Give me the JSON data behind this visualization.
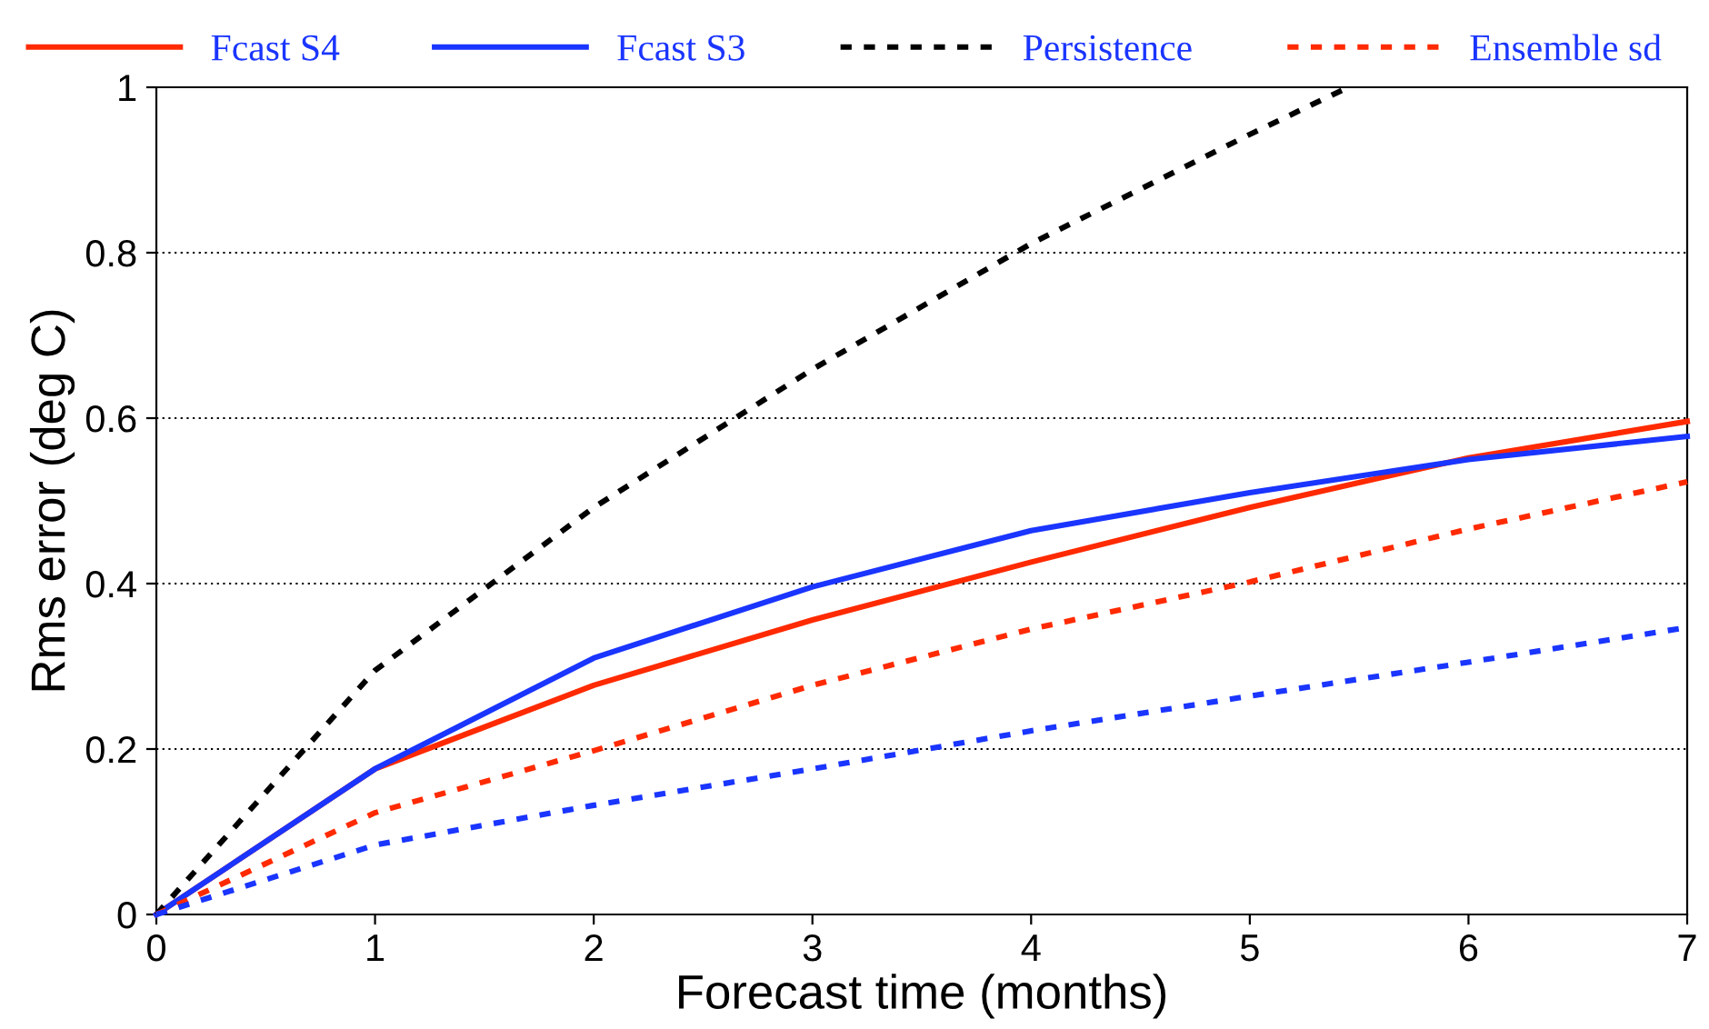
{
  "chart_data": {
    "type": "line",
    "xlabel": "Forecast time (months)",
    "ylabel": "Rms error (deg C)",
    "x": [
      0,
      1,
      2,
      3,
      4,
      5,
      6,
      7
    ],
    "series": [
      {
        "name": "Fcast S4",
        "color": "#ff2a00",
        "line_style": "solid",
        "values": [
          0,
          0.176,
          0.277,
          0.356,
          0.426,
          0.492,
          0.552,
          0.596
        ]
      },
      {
        "name": "Fcast S3",
        "color": "#1a35ff",
        "line_style": "solid",
        "values": [
          0,
          0.176,
          0.31,
          0.396,
          0.464,
          0.51,
          0.55,
          0.578
        ]
      },
      {
        "name": "Persistence",
        "color": "#000000",
        "line_style": "dotted",
        "x": [
          0,
          1,
          2,
          3,
          4,
          5,
          5.45
        ],
        "values": [
          0,
          0.295,
          0.492,
          0.659,
          0.811,
          0.943,
          1.0
        ]
      },
      {
        "name": "Ensemble sd",
        "color": "#ff2a00",
        "line_style": "dotted",
        "values": [
          0,
          0.123,
          0.198,
          0.277,
          0.345,
          0.402,
          0.466,
          0.523
        ]
      },
      {
        "color": "#1a35ff",
        "line_style": "dotted",
        "values": [
          0,
          0.084,
          0.132,
          0.176,
          0.222,
          0.264,
          0.305,
          0.347
        ]
      }
    ],
    "xlim": [
      0,
      7
    ],
    "xticks": [
      0,
      1,
      2,
      3,
      4,
      5,
      6,
      7
    ],
    "ylim": [
      0,
      1
    ],
    "yticks": [
      0,
      0.2,
      0.4,
      0.6,
      0.8,
      1
    ],
    "grid": "y",
    "legend": "top",
    "marker": "none"
  }
}
